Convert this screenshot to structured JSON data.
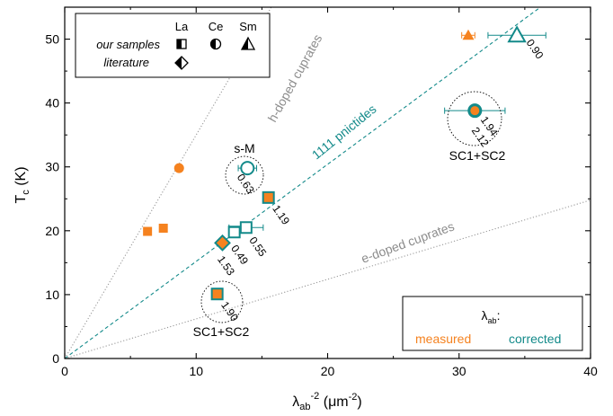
{
  "colors": {
    "measured": "#F5821F",
    "corrected": "#138A8A",
    "cuprate_line": "#999999",
    "axis": "#000000"
  },
  "chart_data": {
    "type": "scatter",
    "xlabel": {
      "main": "λ",
      "sub": "ab",
      "sup": "-2",
      "unit": " (μm",
      "unit_sup": "-2",
      "tail": ")"
    },
    "ylabel": {
      "main": "T",
      "sub": "c",
      "unit": " (K)"
    },
    "xlim": [
      0,
      40
    ],
    "ylim": [
      0,
      55
    ],
    "xticks": [
      "0",
      "10",
      "20",
      "30",
      "40"
    ],
    "yticks": [
      "0",
      "10",
      "20",
      "30",
      "40",
      "50"
    ],
    "lines": [
      {
        "name": "h-doped cuprates",
        "slope": 3.5,
        "style": "dotted",
        "color": "#999999"
      },
      {
        "name": "1111 pnictides",
        "slope": 1.52,
        "style": "dashed",
        "color": "#138A8A"
      },
      {
        "name": "e-doped cuprates",
        "slope": 0.62,
        "style": "dotted",
        "color": "#999999"
      }
    ],
    "measured_points": [
      {
        "x": 6.3,
        "y": 19.9,
        "marker": "square"
      },
      {
        "x": 7.5,
        "y": 20.4,
        "marker": "square"
      },
      {
        "x": 8.7,
        "y": 29.8,
        "marker": "circle"
      },
      {
        "x": 30.7,
        "y": 50.6,
        "marker": "triangle",
        "xerr": 0.5
      }
    ],
    "corrected_points": [
      {
        "x": 11.6,
        "y": 10.1,
        "marker": "square-half",
        "label": "1.90"
      },
      {
        "x": 12.0,
        "y": 18.1,
        "marker": "diamond-half",
        "label": "1.53"
      },
      {
        "x": 12.9,
        "y": 19.8,
        "marker": "square-open",
        "label": "0.49"
      },
      {
        "x": 13.8,
        "y": 20.5,
        "marker": "square-open",
        "label": "0.55",
        "xerr": 1.3
      },
      {
        "x": 15.5,
        "y": 25.2,
        "marker": "square-half",
        "label": "1.19"
      },
      {
        "x": 13.9,
        "y": 29.8,
        "marker": "circle-open",
        "label": "0.63",
        "xerr": 0.7
      },
      {
        "x": 31.2,
        "y": 38.8,
        "marker": "circle-half",
        "label": "1.94",
        "label2": "2.12",
        "xerr": 2.3
      },
      {
        "x": 34.4,
        "y": 50.6,
        "marker": "triangle-open",
        "label": "0.90",
        "xerr": 2.2
      }
    ],
    "annotations": [
      {
        "text": "s-M",
        "x": 13.9,
        "y": 29.8
      },
      {
        "text": "SC1+SC2",
        "x": 11.8,
        "y": 10.0
      },
      {
        "text": "SC1+SC2",
        "x": 31.3,
        "y": 38.8
      }
    ],
    "legend_materials": {
      "columns": [
        "La",
        "Ce",
        "Sm"
      ],
      "rows": [
        "our samples",
        "literature"
      ],
      "placement": "top-left"
    },
    "legend_colors": {
      "title": "λ",
      "title_sub": "ab",
      "title_suffix": ":",
      "measured": "measured",
      "corrected": "corrected",
      "placement": "bottom-right"
    }
  }
}
